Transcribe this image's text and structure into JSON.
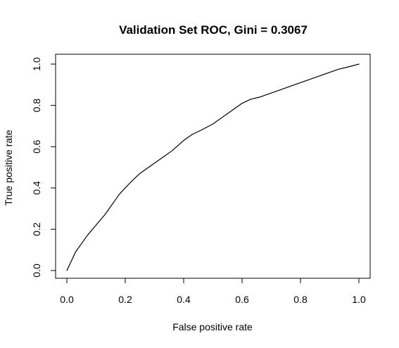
{
  "chart_data": {
    "type": "line",
    "title": "Validation Set ROC, Gini =  0.3067",
    "xlabel": "False positive rate",
    "ylabel": "True positive rate",
    "xlim": [
      0,
      1
    ],
    "ylim": [
      0,
      1
    ],
    "xticks": [
      "0.0",
      "0.2",
      "0.4",
      "0.6",
      "0.8",
      "1.0"
    ],
    "yticks": [
      "0.0",
      "0.2",
      "0.4",
      "0.6",
      "0.8",
      "1.0"
    ],
    "grid": false,
    "line_color": "#000000",
    "series": [
      {
        "x": [
          0,
          0.01,
          0.02,
          0.03,
          0.05,
          0.07,
          0.1,
          0.13,
          0.16,
          0.18,
          0.2,
          0.22,
          0.25,
          0.28,
          0.3,
          0.33,
          0.36,
          0.4,
          0.43,
          0.46,
          0.5,
          0.53,
          0.56,
          0.6,
          0.63,
          0.66,
          0.7,
          0.73,
          0.76,
          0.8,
          0.83,
          0.86,
          0.9,
          0.93,
          0.96,
          1.0
        ],
        "y": [
          0,
          0.03,
          0.06,
          0.09,
          0.13,
          0.17,
          0.22,
          0.27,
          0.33,
          0.37,
          0.4,
          0.43,
          0.47,
          0.5,
          0.52,
          0.55,
          0.58,
          0.63,
          0.66,
          0.68,
          0.71,
          0.74,
          0.77,
          0.81,
          0.83,
          0.84,
          0.86,
          0.875,
          0.89,
          0.91,
          0.925,
          0.94,
          0.96,
          0.975,
          0.985,
          1.0
        ]
      }
    ]
  }
}
